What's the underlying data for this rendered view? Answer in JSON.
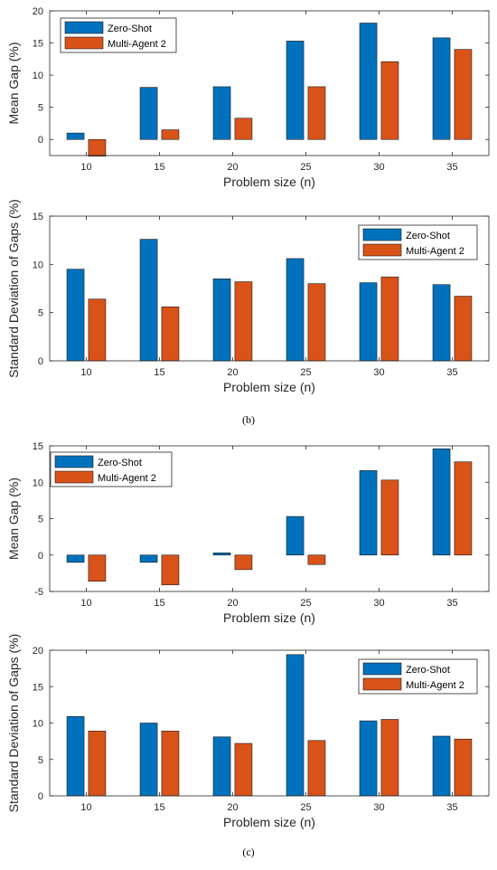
{
  "colors": {
    "zero_shot": "#0072BD",
    "multi_agent": "#D95319",
    "axis": "#262626"
  },
  "panel_labels": [
    "(b)",
    "(c)"
  ],
  "chart_data": [
    {
      "type": "bar",
      "categories": [
        "10",
        "15",
        "20",
        "25",
        "30",
        "35"
      ],
      "series": [
        {
          "name": "Zero-Shot",
          "values": [
            1.0,
            8.1,
            8.2,
            15.3,
            18.1,
            15.8
          ]
        },
        {
          "name": "Multi-Agent 2",
          "values": [
            -2.6,
            1.5,
            3.3,
            8.2,
            12.1,
            14.0
          ]
        }
      ],
      "xlabel": "Problem size (n)",
      "ylabel": "Mean Gap (%)",
      "ylim": [
        -2.5,
        20
      ],
      "yticks": [
        0,
        5,
        10,
        15,
        20
      ],
      "grid": false,
      "legend": "top-left"
    },
    {
      "type": "bar",
      "categories": [
        "10",
        "15",
        "20",
        "25",
        "30",
        "35"
      ],
      "series": [
        {
          "name": "Zero-Shot",
          "values": [
            9.5,
            12.6,
            8.5,
            10.6,
            8.1,
            7.9
          ]
        },
        {
          "name": "Multi-Agent 2",
          "values": [
            6.4,
            5.6,
            8.2,
            8.0,
            8.7,
            6.7
          ]
        }
      ],
      "xlabel": "Problem size (n)",
      "ylabel": "Standard Deviation of Gaps (%)",
      "ylim": [
        0,
        15
      ],
      "yticks": [
        0,
        5,
        10,
        15
      ],
      "grid": false,
      "legend": "top-right"
    },
    {
      "type": "bar",
      "categories": [
        "10",
        "15",
        "20",
        "25",
        "30",
        "35"
      ],
      "series": [
        {
          "name": "Zero-Shot",
          "values": [
            -1.0,
            -1.0,
            0.3,
            5.3,
            11.6,
            14.6
          ]
        },
        {
          "name": "Multi-Agent 2",
          "values": [
            -3.6,
            -4.1,
            -2.0,
            -1.3,
            10.3,
            12.8
          ]
        }
      ],
      "xlabel": "Problem size (n)",
      "ylabel": "Mean Gap (%)",
      "ylim": [
        -5,
        15
      ],
      "yticks": [
        -5,
        0,
        5,
        10,
        15
      ],
      "grid": false,
      "legend": "top-left"
    },
    {
      "type": "bar",
      "categories": [
        "10",
        "15",
        "20",
        "25",
        "30",
        "35"
      ],
      "series": [
        {
          "name": "Zero-Shot",
          "values": [
            10.9,
            10.0,
            8.1,
            19.4,
            10.3,
            8.2
          ]
        },
        {
          "name": "Multi-Agent 2",
          "values": [
            8.9,
            8.9,
            7.2,
            7.6,
            10.5,
            7.8
          ]
        }
      ],
      "xlabel": "Problem size (n)",
      "ylabel": "Standard Deviation of Gaps (%)",
      "ylim": [
        0,
        20
      ],
      "yticks": [
        0,
        5,
        10,
        15,
        20
      ],
      "grid": false,
      "legend": "top-right"
    }
  ]
}
